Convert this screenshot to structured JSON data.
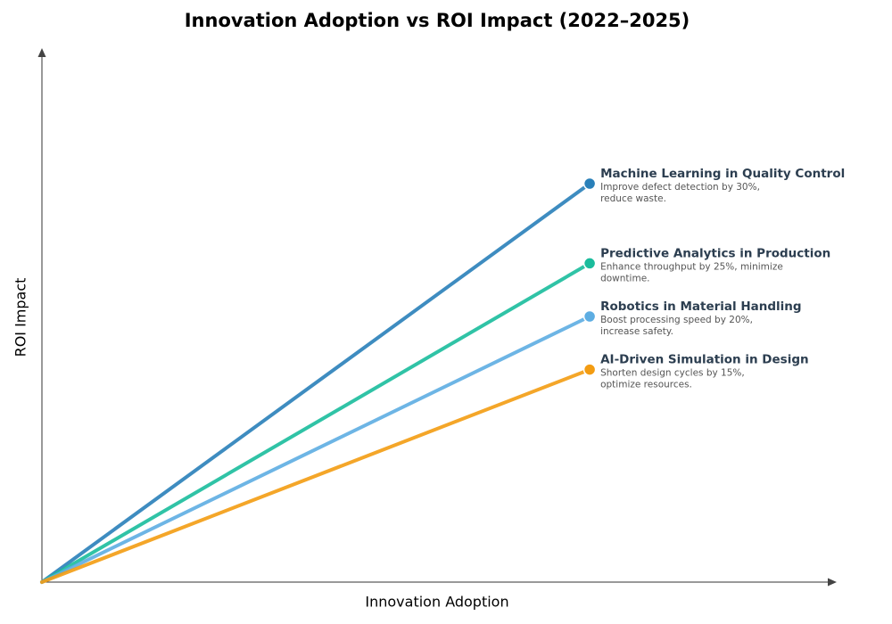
{
  "chart_data": {
    "type": "line",
    "title": "Innovation Adoption vs ROI Impact (2022–2025)",
    "x_label": "Innovation Adoption",
    "y_label": "ROI Impact",
    "xlim": [
      0,
      1
    ],
    "ylim": [
      0,
      1
    ],
    "series": [
      {
        "name": "Machine Learning in Quality Control",
        "description": [
          "Improve defect detection by 30%,",
          "reduce waste."
        ],
        "color": "#2980b9",
        "x": [
          0,
          0.69
        ],
        "values": [
          0,
          0.75
        ]
      },
      {
        "name": "Predictive Analytics in Production",
        "description": [
          "Enhance throughput by 25%, minimize",
          "downtime."
        ],
        "color": "#1abc9c",
        "x": [
          0,
          0.69
        ],
        "values": [
          0,
          0.6
        ]
      },
      {
        "name": "Robotics in Material Handling",
        "description": [
          "Boost processing speed by 20%,",
          "increase safety."
        ],
        "color": "#5dade2",
        "x": [
          0,
          0.69
        ],
        "values": [
          0,
          0.5
        ]
      },
      {
        "name": "AI-Driven Simulation in Design",
        "description": [
          "Shorten design cycles by 15%,",
          "optimize resources."
        ],
        "color": "#f39c12",
        "x": [
          0,
          0.69
        ],
        "values": [
          0,
          0.4
        ]
      }
    ]
  }
}
